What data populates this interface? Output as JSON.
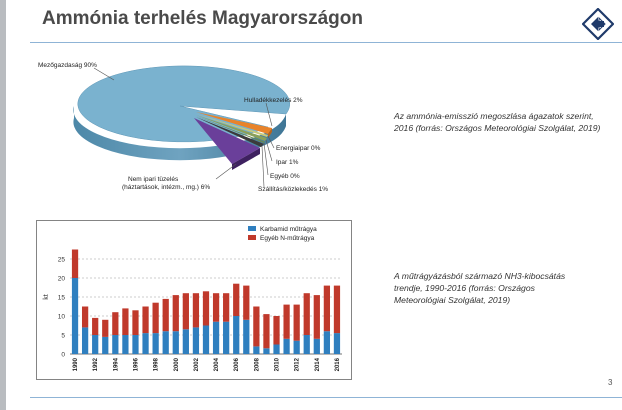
{
  "slide": {
    "title": "Ammónia terhelés Magyarországon",
    "page_number": "3",
    "caption_top": "Az ammónia-emisszió megoszlása ágazatok szerint, 2016 (forrás: Országos Meteorológiai Szolgálat, 2019)",
    "caption_bottom": "A műtrágyázásból származó NH3-kibocsátás trendje, 1990-2016 (forrás: Országos Meteorológiai Szolgálat, 2019)",
    "logo_icon": "diamond-arrows-logo-icon",
    "colors": {
      "accent_line": "#8fb4d6",
      "title": "#4a4a4a",
      "logo": "#1f3a6a"
    }
  },
  "chart_data": [
    {
      "type": "pie",
      "labels": [
        "Mezőgazdaság 90%",
        "Hulladékkezelés 2%",
        "Energiaipar 0%",
        "Ipar 1%",
        "Egyéb 0%",
        "Szállítás/közlekedés 1%",
        "Nem ipari tüzelés (háztartások, intézm., mg.) 6%"
      ],
      "values": [
        90,
        2,
        0,
        1,
        0,
        1,
        6
      ],
      "colors": [
        "#7ab2cf",
        "#e8832a",
        "#c9c97a",
        "#8aa05a",
        "#6a8a4a",
        "#3b3b3b",
        "#6a3f9a"
      ]
    },
    {
      "type": "bar",
      "stacked": true,
      "categories": [
        "1990",
        "1991",
        "1992",
        "1993",
        "1994",
        "1995",
        "1996",
        "1997",
        "1998",
        "1999",
        "2000",
        "2001",
        "2002",
        "2003",
        "2004",
        "2005",
        "2006",
        "2007",
        "2008",
        "2009",
        "2010",
        "2011",
        "2012",
        "2013",
        "2014",
        "2015",
        "2016"
      ],
      "tick_labels": [
        "1990",
        "1992",
        "1994",
        "1996",
        "1998",
        "2000",
        "2002",
        "2004",
        "2006",
        "2008",
        "2010",
        "2012",
        "2014",
        "2016"
      ],
      "series": [
        {
          "name": "Karbamid műtrágya",
          "color": "#2f7fbf",
          "values": [
            20,
            7,
            5,
            4.5,
            5,
            5,
            5,
            5.5,
            5.5,
            6,
            6,
            6.5,
            7,
            7.5,
            8.5,
            8.5,
            10,
            9,
            2,
            1.5,
            2.5,
            4,
            3.5,
            5,
            4,
            6,
            5.5
          ]
        },
        {
          "name": "Egyéb N-műtrágya",
          "color": "#c0392b",
          "values": [
            7.5,
            5.5,
            4.5,
            4.5,
            6,
            7,
            6.5,
            7,
            8,
            8.5,
            9.5,
            9.5,
            9,
            9,
            7.5,
            7.5,
            8.5,
            9,
            10.5,
            9,
            7.5,
            9,
            9.5,
            11,
            11.5,
            12,
            12.5
          ]
        }
      ],
      "ylabel": "kt",
      "ylim": [
        0,
        30
      ],
      "yticks": [
        0,
        5,
        10,
        15,
        20,
        25
      ],
      "legend_placement": "top-right"
    }
  ]
}
